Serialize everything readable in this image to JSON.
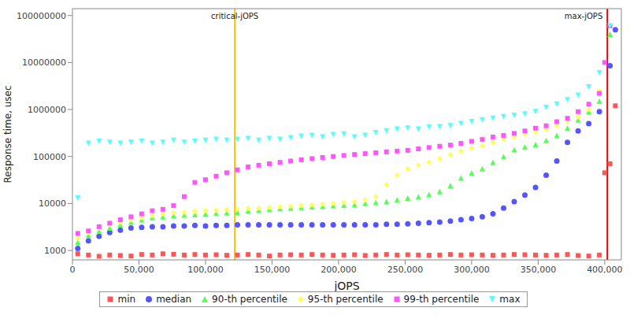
{
  "chart_data": {
    "type": "scatter",
    "x_label": "jOPS",
    "y_label": "Response time, usec",
    "x": [
      4000,
      12000,
      20000,
      28000,
      36000,
      44000,
      52000,
      60000,
      68000,
      76000,
      84000,
      92000,
      100000,
      108000,
      116000,
      124000,
      132000,
      140000,
      148000,
      156000,
      164000,
      172000,
      180000,
      188000,
      196000,
      204000,
      212000,
      220000,
      228000,
      236000,
      244000,
      252000,
      260000,
      268000,
      276000,
      284000,
      292000,
      300000,
      308000,
      316000,
      324000,
      332000,
      340000,
      348000,
      356000,
      364000,
      372000,
      380000,
      388000,
      396000,
      400000,
      404000,
      408000
    ],
    "series": [
      {
        "name": "min",
        "color": "#ff5555",
        "marker": "square",
        "values": [
          850,
          800,
          750,
          800,
          780,
          760,
          820,
          800,
          850,
          830,
          800,
          820,
          800,
          810,
          790,
          800,
          820,
          800,
          760,
          800,
          810,
          800,
          820,
          800,
          790,
          800,
          810,
          780,
          800,
          820,
          800,
          810,
          800,
          790,
          800,
          820,
          800,
          810,
          800,
          790,
          800,
          820,
          810,
          800,
          790,
          800,
          820,
          780,
          760,
          800,
          45000,
          70000,
          1200000
        ]
      },
      {
        "name": "median",
        "color": "#5555ff",
        "marker": "circle",
        "values": [
          1100,
          1600,
          2000,
          2400,
          2700,
          3000,
          3100,
          3200,
          3200,
          3300,
          3300,
          3400,
          3300,
          3400,
          3400,
          3500,
          3500,
          3500,
          3500,
          3500,
          3500,
          3500,
          3500,
          3500,
          3500,
          3500,
          3500,
          3500,
          3500,
          3600,
          3600,
          3700,
          3800,
          3900,
          4000,
          4200,
          4500,
          4800,
          5200,
          6000,
          8000,
          11000,
          15000,
          22000,
          40000,
          80000,
          200000,
          350000,
          500000,
          900000,
          null,
          8500000,
          50000000
        ]
      },
      {
        "name": "90-th percentile",
        "color": "#55ff55",
        "marker": "triangle",
        "values": [
          1500,
          2100,
          2600,
          3000,
          3500,
          4000,
          4500,
          5000,
          5200,
          5500,
          5700,
          5800,
          6000,
          6200,
          6300,
          6500,
          7000,
          7200,
          7500,
          7800,
          8000,
          8300,
          8500,
          8700,
          9000,
          9200,
          9500,
          10000,
          10500,
          11000,
          12000,
          13000,
          14000,
          15500,
          18000,
          24000,
          35000,
          45000,
          55000,
          75000,
          100000,
          140000,
          160000,
          180000,
          220000,
          280000,
          400000,
          600000,
          900000,
          1500000,
          null,
          40000000,
          null
        ]
      },
      {
        "name": "95-th percentile",
        "color": "#ffff55",
        "marker": "diamond",
        "values": [
          1800,
          2400,
          3000,
          3500,
          4000,
          4500,
          5000,
          5500,
          6000,
          6300,
          6500,
          6800,
          7000,
          7200,
          7400,
          7600,
          7800,
          8000,
          8200,
          8500,
          8800,
          9000,
          9300,
          9700,
          10000,
          10500,
          11000,
          12000,
          14000,
          25000,
          40000,
          55000,
          65000,
          75000,
          90000,
          110000,
          130000,
          150000,
          170000,
          200000,
          230000,
          260000,
          300000,
          330000,
          380000,
          450000,
          550000,
          700000,
          1000000,
          2500000,
          null,
          60000000,
          null
        ]
      },
      {
        "name": "99-th percentile",
        "color": "#ff55ff",
        "marker": "square",
        "values": [
          2300,
          2600,
          3200,
          3800,
          4500,
          5200,
          6000,
          7000,
          7500,
          9000,
          14000,
          28000,
          32000,
          38000,
          45000,
          52000,
          60000,
          65000,
          70000,
          75000,
          80000,
          85000,
          90000,
          95000,
          100000,
          105000,
          110000,
          115000,
          120000,
          125000,
          130000,
          135000,
          145000,
          155000,
          165000,
          175000,
          190000,
          210000,
          230000,
          260000,
          280000,
          310000,
          350000,
          400000,
          450000,
          550000,
          650000,
          900000,
          1300000,
          2200000,
          10000000,
          60000000,
          null
        ]
      },
      {
        "name": "max",
        "color": "#55ffff",
        "marker": "triangle-down",
        "values": [
          13000,
          190000,
          210000,
          200000,
          190000,
          200000,
          210000,
          190000,
          200000,
          220000,
          200000,
          210000,
          220000,
          230000,
          220000,
          230000,
          240000,
          220000,
          240000,
          230000,
          250000,
          270000,
          280000,
          260000,
          290000,
          300000,
          260000,
          280000,
          320000,
          350000,
          380000,
          400000,
          380000,
          420000,
          430000,
          450000,
          500000,
          550000,
          600000,
          650000,
          700000,
          750000,
          800000,
          900000,
          1100000,
          1300000,
          1600000,
          2000000,
          3000000,
          6000000,
          null,
          60000000,
          null
        ]
      }
    ],
    "xlim": [
      0,
      412500
    ],
    "xticks": [
      0,
      {
        "value": 50000,
        "label": "50,000"
      },
      {
        "value": 100000,
        "label": "100,000"
      },
      {
        "value": 150000,
        "label": "150,000"
      },
      {
        "value": 200000,
        "label": "200,000"
      },
      {
        "value": 250000,
        "label": "250,000"
      },
      {
        "value": 300000,
        "label": "300,000"
      },
      {
        "value": 350000,
        "label": "350,000"
      },
      {
        "value": 400000,
        "label": "400,000"
      }
    ],
    "ylim": [
      630,
      140000000
    ],
    "yticks": [
      1000,
      10000,
      100000,
      1000000,
      10000000,
      100000000
    ],
    "log": "y",
    "grid": false,
    "legend": "bottom",
    "annotations": [
      {
        "text": "critical-jOPS",
        "x": 122000,
        "color": "#ffc000"
      },
      {
        "text": "max-jOPS",
        "x": 402000,
        "color": "#e00000"
      }
    ]
  }
}
